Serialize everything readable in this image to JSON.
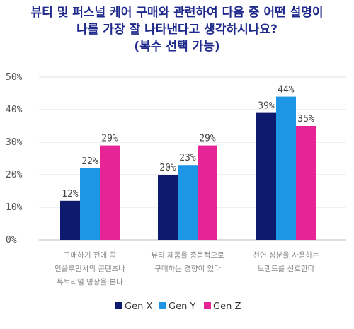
{
  "chart_data": {
    "type": "bar",
    "title_lines": [
      "뷰티 및 퍼스널 케어 구매와 관련하여 다음 중 어떤 설명이",
      "나를 가장 잘 나타낸다고 생각하시나요?",
      "(복수 선택 가능)"
    ],
    "categories": [
      [
        "구매하기 전에 꼭",
        "인플루언서의 콘텐츠나",
        "튜토리얼 영상을 본다"
      ],
      [
        "뷰티 제품을 충동적으로",
        "구매하는 경향이 있다"
      ],
      [
        "천연 성분을 사용하는",
        "브랜드를 선호한다"
      ]
    ],
    "series": [
      {
        "name": "Gen X",
        "values": [
          12,
          20,
          39
        ],
        "color": "#0d1a6e"
      },
      {
        "name": "Gen Y",
        "values": [
          22,
          23,
          44
        ],
        "color": "#1e96e6"
      },
      {
        "name": "Gen Z",
        "values": [
          29,
          29,
          35
        ],
        "color": "#e62496"
      }
    ],
    "value_suffix": "%",
    "ylim": [
      0,
      50
    ],
    "yticks": [
      0,
      10,
      20,
      30,
      40,
      50
    ],
    "grid": true,
    "legend_position": "bottom"
  }
}
